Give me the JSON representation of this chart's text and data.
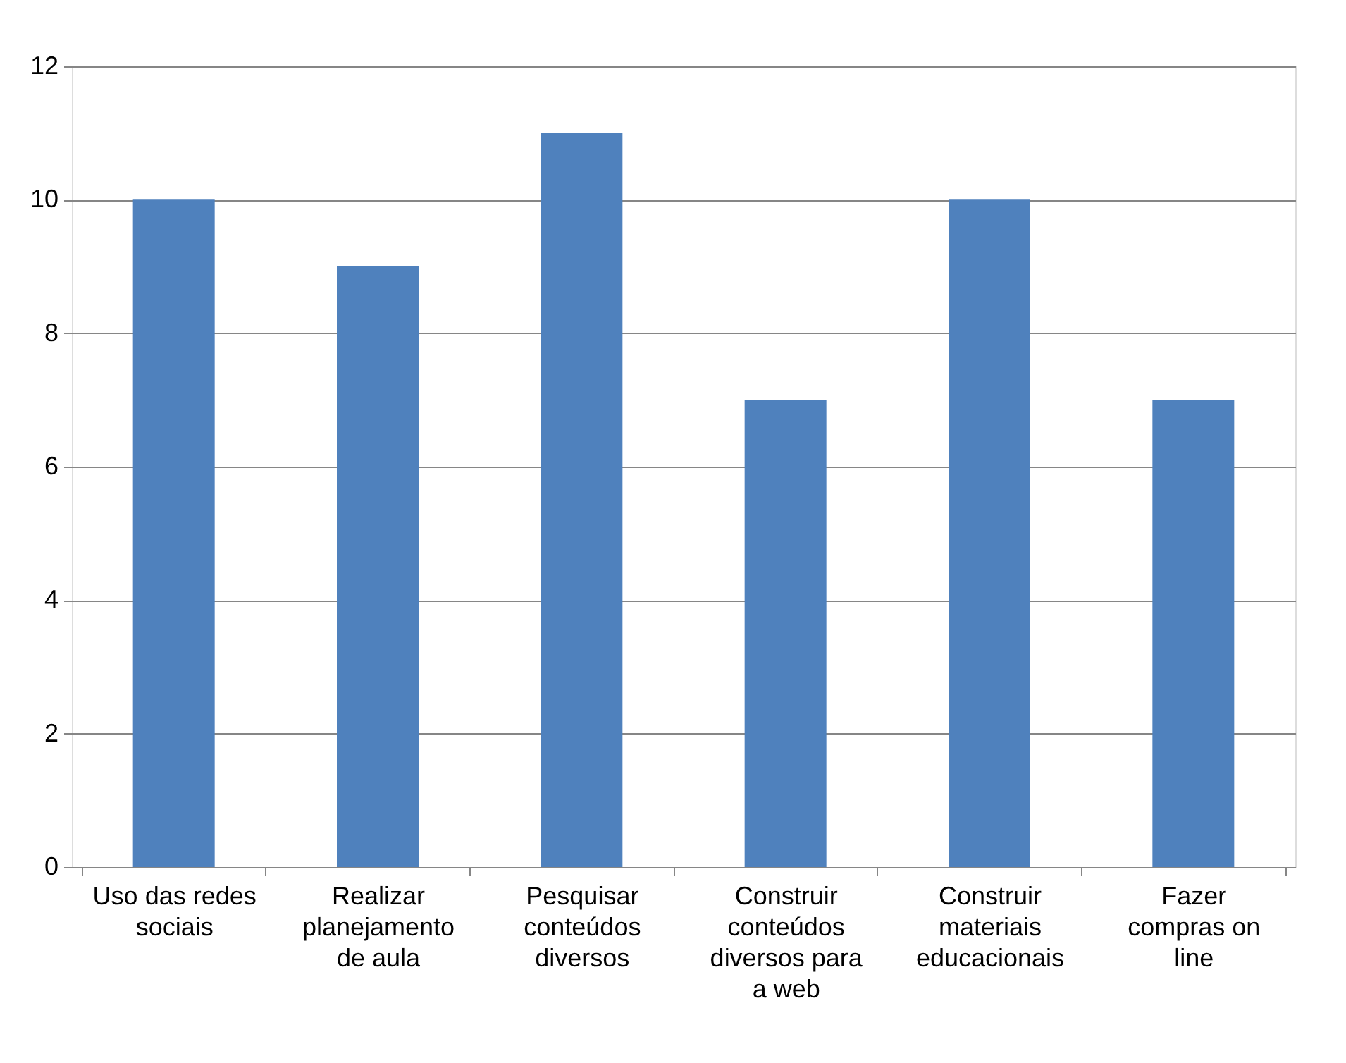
{
  "chart_data": {
    "type": "bar",
    "categories": [
      "Uso das redes sociais",
      "Realizar planejamento de aula",
      "Pesquisar conteúdos diversos",
      "Construir conteúdos diversos para a web",
      "Construir materiais educacionais",
      "Fazer compras on line"
    ],
    "values": [
      10,
      9,
      11,
      7,
      10,
      7
    ],
    "color": "#4f81bd",
    "ylim": [
      0,
      12
    ],
    "yticks": [
      0,
      2,
      4,
      6,
      8,
      10,
      12
    ],
    "grid": "y"
  }
}
